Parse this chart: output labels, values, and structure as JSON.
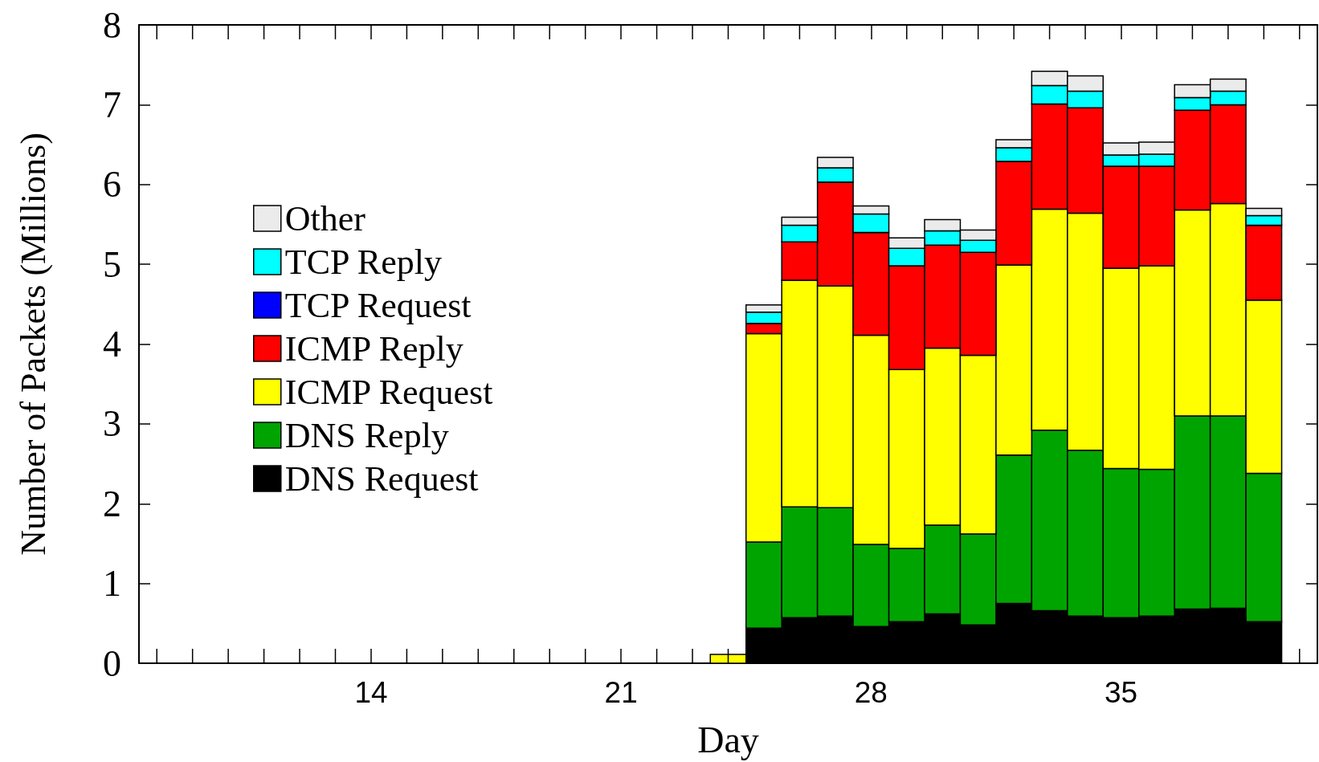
{
  "chart_data": {
    "type": "bar",
    "stacked": true,
    "xlabel": "Day",
    "ylabel": "Number of Packets (Millions)",
    "x": [
      24,
      25,
      26,
      27,
      28,
      29,
      30,
      31,
      32,
      33,
      34,
      35,
      36,
      37,
      38,
      39
    ],
    "xlim": [
      7.5,
      40.5
    ],
    "xticks": [
      14,
      21,
      28,
      35
    ],
    "ylim": [
      0,
      8
    ],
    "yticks": [
      0,
      1,
      2,
      3,
      4,
      5,
      6,
      7,
      8
    ],
    "grid": false,
    "legend": "left",
    "series": [
      {
        "name": "DNS Request",
        "color": "#000000",
        "values": [
          null,
          0.44,
          0.57,
          0.59,
          0.46,
          0.52,
          0.62,
          0.48,
          0.75,
          0.66,
          0.59,
          0.57,
          0.59,
          0.68,
          0.69,
          0.52
        ]
      },
      {
        "name": "DNS Reply",
        "color": "#00a400",
        "values": [
          null,
          1.08,
          1.39,
          1.36,
          1.03,
          0.92,
          1.11,
          1.14,
          1.86,
          2.26,
          2.08,
          1.87,
          1.84,
          2.42,
          2.41,
          1.86
        ]
      },
      {
        "name": "ICMP Request",
        "color": "#ffff00",
        "values": [
          0.11,
          2.61,
          2.84,
          2.78,
          2.62,
          2.24,
          2.22,
          2.24,
          2.38,
          2.77,
          2.97,
          2.51,
          2.55,
          2.58,
          2.66,
          2.17
        ]
      },
      {
        "name": "ICMP Reply",
        "color": "#ff0000",
        "values": [
          null,
          0.13,
          0.48,
          1.3,
          1.29,
          1.3,
          1.29,
          1.29,
          1.3,
          1.32,
          1.32,
          1.28,
          1.25,
          1.25,
          1.24,
          0.94
        ]
      },
      {
        "name": "TCP Request",
        "color": "#0000ff",
        "values": [
          null,
          0,
          0,
          0,
          0,
          0,
          0,
          0,
          0,
          0,
          0,
          0,
          0,
          0,
          0,
          0
        ]
      },
      {
        "name": "TCP Reply",
        "color": "#00ffff",
        "values": [
          null,
          0.14,
          0.21,
          0.18,
          0.23,
          0.22,
          0.18,
          0.15,
          0.17,
          0.23,
          0.21,
          0.14,
          0.15,
          0.16,
          0.17,
          0.12
        ]
      },
      {
        "name": "Other",
        "color": "#ebebeb",
        "values": [
          null,
          0.09,
          0.1,
          0.13,
          0.1,
          0.13,
          0.14,
          0.13,
          0.1,
          0.18,
          0.19,
          0.15,
          0.15,
          0.16,
          0.15,
          0.09
        ]
      }
    ]
  }
}
